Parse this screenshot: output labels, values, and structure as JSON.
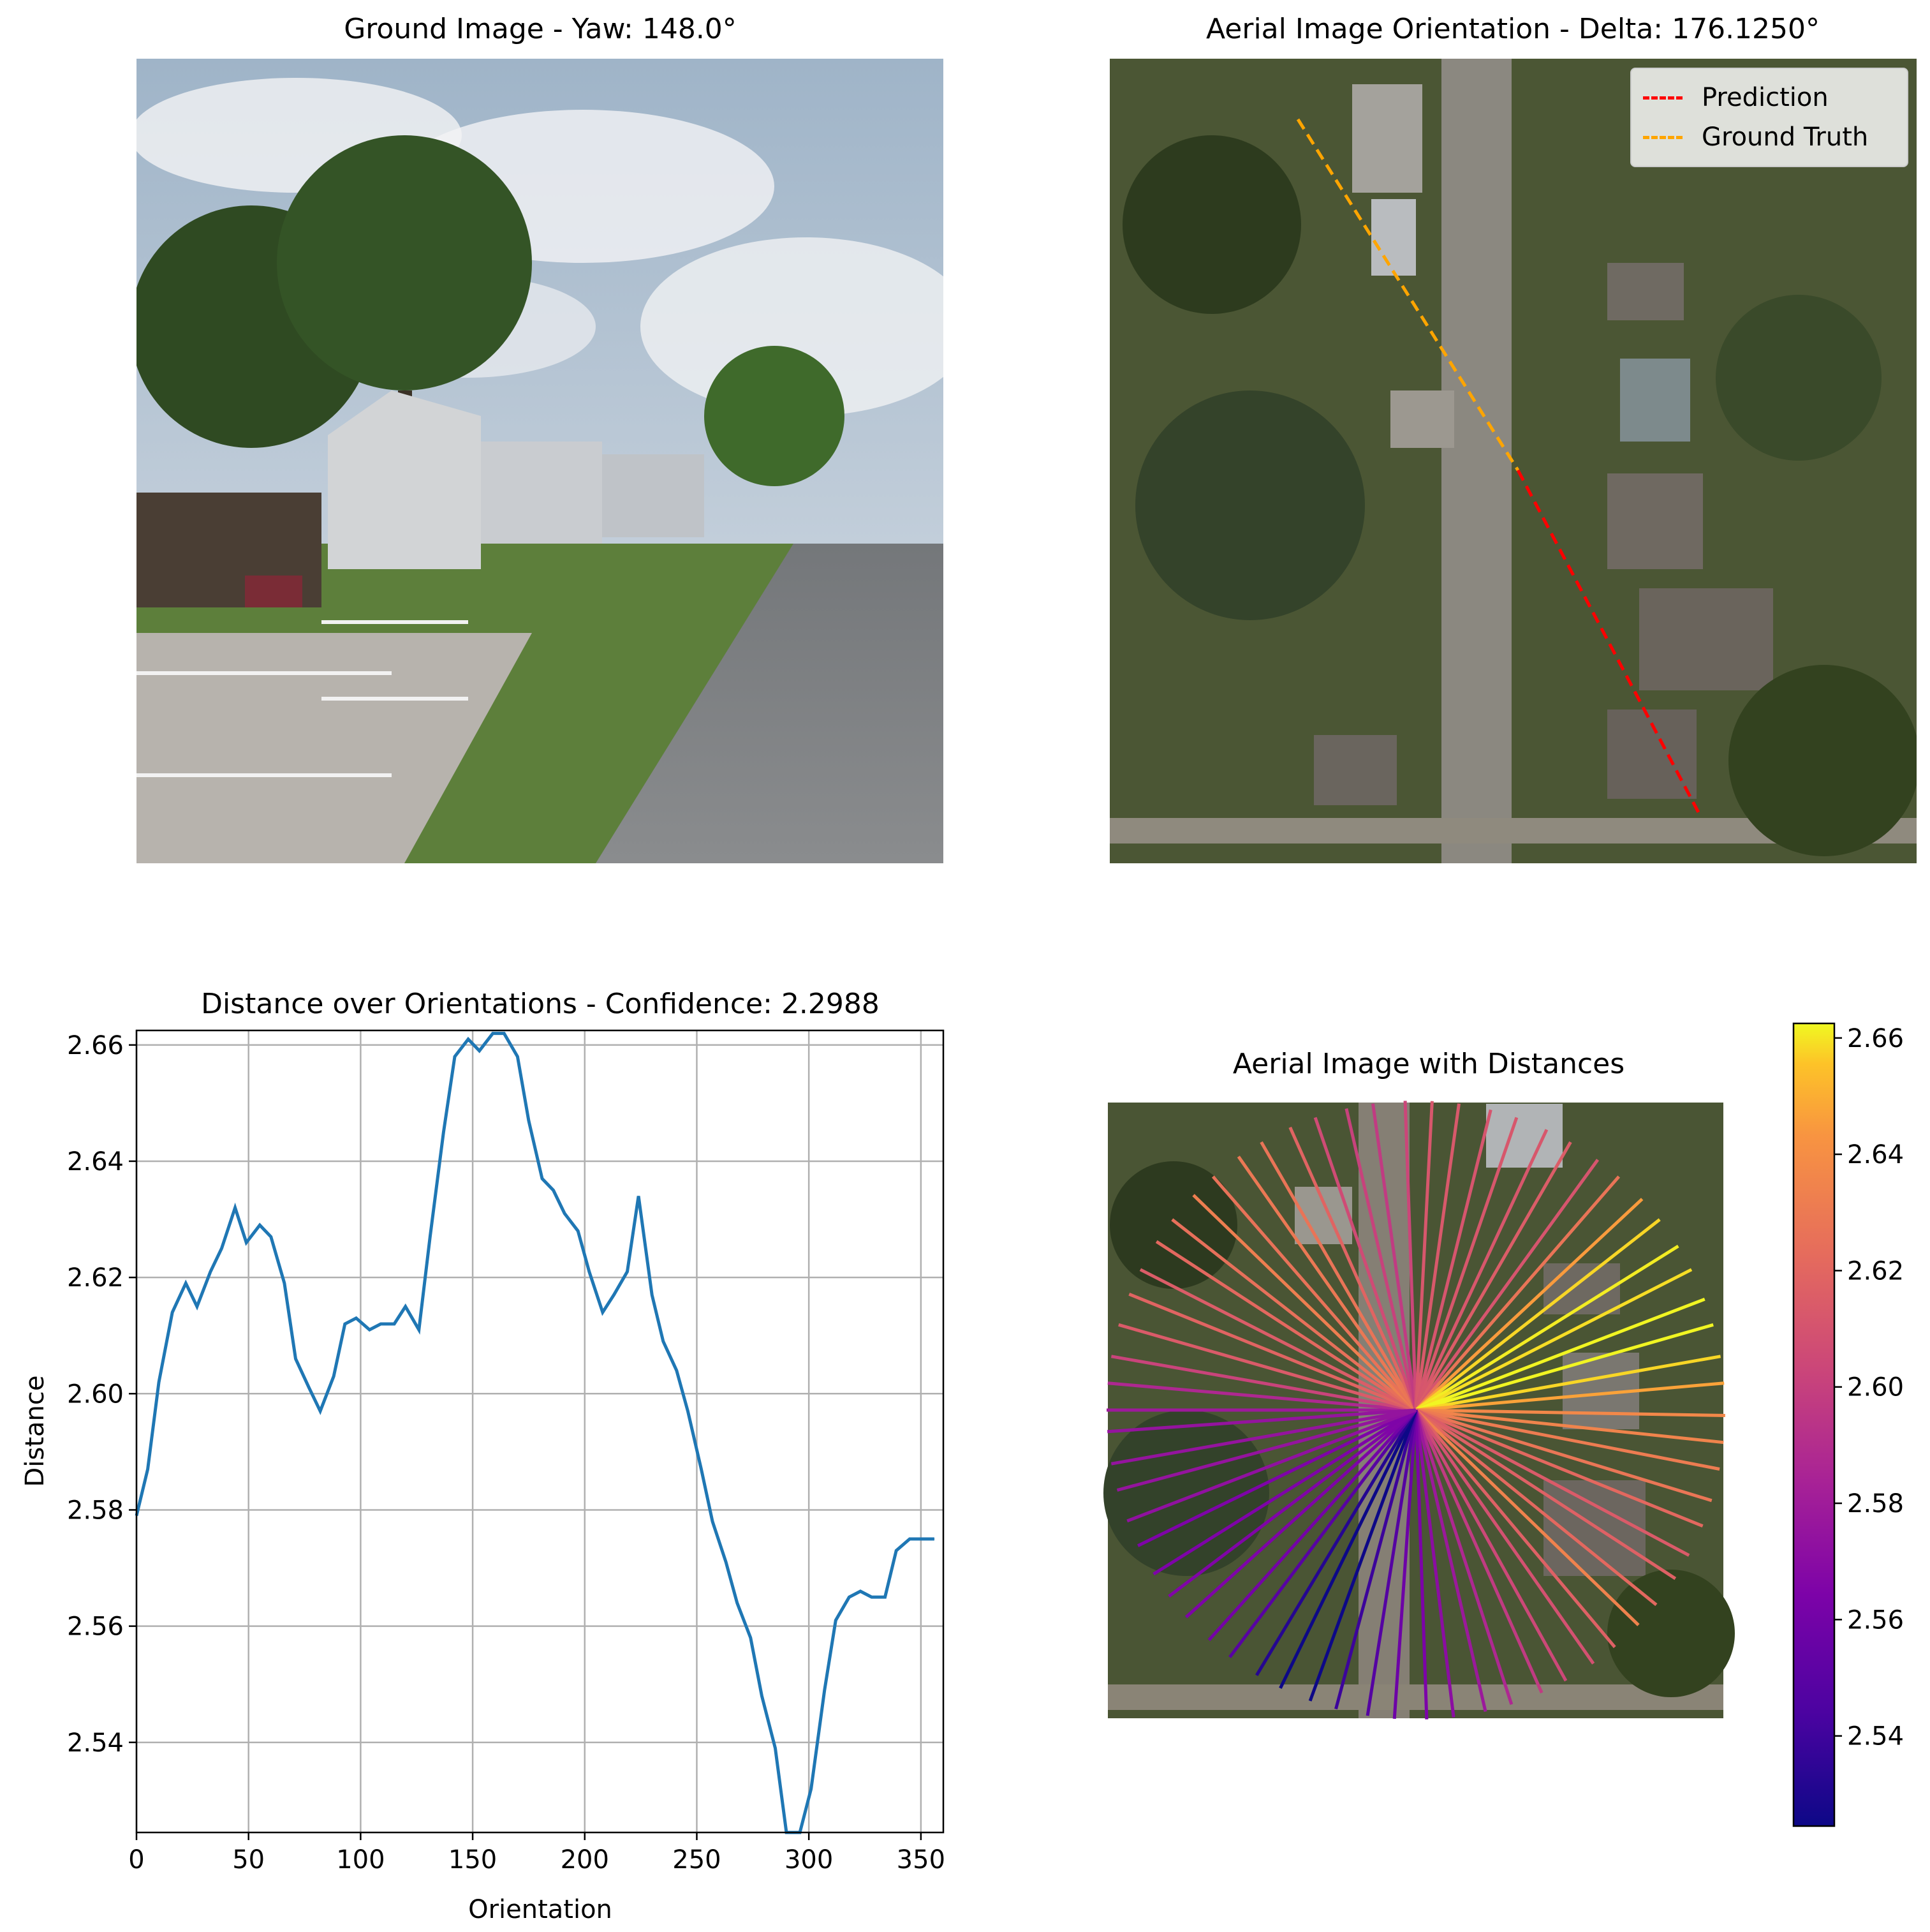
{
  "ground_panel": {
    "title": "Ground Image - Yaw: 148.0°",
    "image": "street-view-photo"
  },
  "aerial_panel": {
    "title": "Aerial Image Orientation - Delta: 176.1250°",
    "image": "aerial-photo",
    "legend": [
      {
        "label": "Prediction",
        "color": "#ff0000"
      },
      {
        "label": "Ground Truth",
        "color": "#ffa500"
      }
    ]
  },
  "colors": {
    "line": "#1f77b4",
    "grid": "#b0b0b0",
    "prediction": "#ff0000",
    "ground_truth": "#ffa500"
  },
  "chart_data": [
    {
      "type": "line",
      "title": "Distance over Orientations - Confidence: 2.2988",
      "xlabel": "Orientation",
      "ylabel": "Distance",
      "xlim": [
        0,
        360
      ],
      "ylim": [
        2.5245,
        2.6625
      ],
      "xticks": [
        0,
        50,
        100,
        150,
        200,
        250,
        300,
        350
      ],
      "yticks": [
        2.54,
        2.56,
        2.58,
        2.6,
        2.62,
        2.64,
        2.66
      ],
      "ytick_labels": [
        "2.54",
        "2.56",
        "2.58",
        "2.60",
        "2.62",
        "2.64",
        "2.66"
      ],
      "grid": true,
      "series": [
        {
          "x": [
            0,
            5,
            10,
            16,
            22,
            27,
            33,
            38,
            44,
            49,
            55,
            60,
            66,
            71,
            77,
            82,
            88,
            93,
            98,
            104,
            109,
            115,
            120,
            126,
            131,
            137,
            142,
            148,
            153,
            159,
            164,
            170,
            175,
            181,
            186,
            191,
            197,
            202,
            208,
            213,
            219,
            224,
            230,
            235,
            241,
            246,
            252,
            257,
            263,
            268,
            274,
            279,
            285,
            290,
            296,
            301,
            307,
            312,
            318,
            323,
            328,
            334,
            339,
            345,
            350,
            356
          ],
          "values": [
            2.579,
            2.587,
            2.602,
            2.614,
            2.619,
            2.615,
            2.621,
            2.625,
            2.632,
            2.626,
            2.629,
            2.627,
            2.619,
            2.606,
            2.601,
            2.597,
            2.603,
            2.612,
            2.613,
            2.611,
            2.612,
            2.612,
            2.615,
            2.611,
            2.627,
            2.645,
            2.658,
            2.661,
            2.659,
            2.662,
            2.662,
            2.658,
            2.647,
            2.637,
            2.635,
            2.631,
            2.628,
            2.621,
            2.614,
            2.617,
            2.621,
            2.634,
            2.617,
            2.609,
            2.604,
            2.597,
            2.587,
            2.578,
            2.571,
            2.564,
            2.558,
            2.548,
            2.539,
            2.524,
            2.523,
            2.532,
            2.549,
            2.561,
            2.565,
            2.566,
            2.565,
            2.565,
            2.573,
            2.575,
            2.575,
            2.575
          ]
        }
      ]
    },
    {
      "type": "radial",
      "title": "Aerial Image with Distances",
      "colorbar_ticks": [
        2.54,
        2.56,
        2.58,
        2.6,
        2.62,
        2.64,
        2.66
      ],
      "colorbar_labels": [
        "2.54",
        "2.56",
        "2.58",
        "2.60",
        "2.62",
        "2.64",
        "2.66"
      ],
      "clim": [
        2.5245,
        2.6625
      ],
      "colormap": "plasma"
    }
  ]
}
